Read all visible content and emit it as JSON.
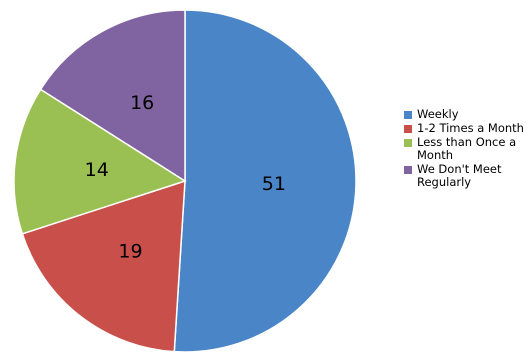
{
  "chart_data": {
    "type": "pie",
    "categories": [
      "Weekly",
      "1-2 Times a Month",
      "Less than Once a Month",
      "We Don't Meet Regularly"
    ],
    "values": [
      51,
      19,
      14,
      16
    ],
    "data_labels": [
      "51",
      "19",
      "14",
      "16"
    ],
    "colors": [
      "#4a86c7",
      "#c9504a",
      "#9abf52",
      "#8064a2"
    ],
    "start_angle": "12 o'clock",
    "direction": "clockwise",
    "legend": {
      "position": "right",
      "entries": [
        "Weekly",
        "1-2 Times a Month",
        "Less than Once a Month",
        "We Don't Meet Regularly"
      ]
    }
  }
}
